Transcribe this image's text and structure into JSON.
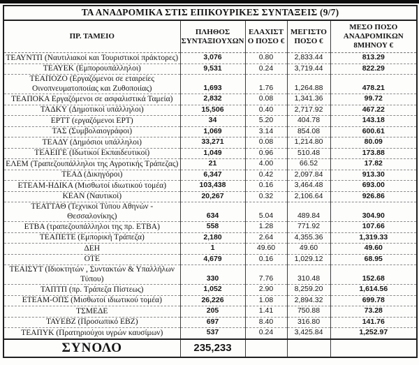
{
  "colors": {
    "top_bar": "#0c0c0c",
    "border": "#1f1f1f",
    "text": "#151515",
    "background": "#fdfdfc"
  },
  "table": {
    "title": "ΤΑ ΑΝΑΔΡΟΜΙΚΑ ΣΤΙΣ ΕΠΙΚΟΥΡΙΚΕΣ ΣΥΝΤΑΞΕΙΣ (9/7)",
    "columns": [
      "ΠΡ. ΤΑΜΕΙΟ",
      "ΠΛΗΘΟΣ ΣΥΝΤΑΞΙΟΥΧΩΝ",
      "ΕΛΑΧΙΣΤΟ ΠΟΣΟ €",
      "ΜΕΓΙΣΤΟ ΠΟΣΟ €",
      "ΜΕΣΟ ΠΟΣΟ ΑΝΑΔΡΟΜΙΚΩΝ 8ΜΗΝΟΥ €"
    ],
    "rows": [
      {
        "fund": "ΤΕΑΥΝΤΠ (Ναυτιλιακοί και Τουριστικοί πράκτορες)",
        "count": "3,076",
        "min": "0.80",
        "max": "2,833.44",
        "avg": "813.29"
      },
      {
        "fund": "ΤΕΑΥΕΚ (Εμπορουπάλληλοι)",
        "count": "9,531",
        "min": "0.24",
        "max": "3,719.44",
        "avg": "822.29"
      },
      {
        "fund": "ΤΕΑΠΟΖΟ (Εργαζόμενοι σε εταιρείες Οινοπνευματοποιίας και Ζυθοποιίας)",
        "count": "1,693",
        "min": "1.76",
        "max": "1,264.88",
        "avg": "478.21"
      },
      {
        "fund": "ΤΕΑΠΟΚΑ Εργαζόμενοι σε ασφαλιστικά Ταμεία)",
        "count": "2,832",
        "min": "0.08",
        "max": "1,341.36",
        "avg": "99.72"
      },
      {
        "fund": "ΤΑΔΚΥ (Δημοτικοί υπάλληλοι)",
        "count": "15,506",
        "min": "0.40",
        "max": "2,717.92",
        "avg": "467.22"
      },
      {
        "fund": "ΕΡΤΤ (εργαζόμενοι ΕΡΤ)",
        "count": "34",
        "min": "5.20",
        "max": "404.78",
        "avg": "143.18"
      },
      {
        "fund": "ΤΑΣ (Συμβολαιογράφοι)",
        "count": "1,069",
        "min": "3.14",
        "max": "854.08",
        "avg": "600.61"
      },
      {
        "fund": "ΤΕΑΔΥ (Δημόσιοι υπάλληλοι)",
        "count": "33,271",
        "min": "0.08",
        "max": "1,214.80",
        "avg": "80.09"
      },
      {
        "fund": "ΤΕΑΕΙΓΕ (Ιδωτικοί Εκπαιδευτικοί)",
        "count": "1,049",
        "min": "0.96",
        "max": "510.48",
        "avg": "173.88"
      },
      {
        "fund": "ΕΛΕΜ (Τραπεζουπάλληλοι της Αγροτικής Τράπεζας)",
        "count": "21",
        "min": "4.00",
        "max": "66.52",
        "avg": "17.82"
      },
      {
        "fund": "ΤΕΑΔ (Δικηγόροι)",
        "count": "6,347",
        "min": "0.42",
        "max": "2,097.84",
        "avg": "913.30"
      },
      {
        "fund": "ΕΤΕΑΜ-ΗΔΙΚΑ (Μισθωτοί ιδιωτικού τομέα)",
        "count": "103,438",
        "min": "0.16",
        "max": "3,464.48",
        "avg": "693.00"
      },
      {
        "fund": "ΚΕΑΝ (Ναυτικοί)",
        "count": "20,267",
        "min": "0.32",
        "max": "2,106.64",
        "avg": "926.86"
      },
      {
        "fund": "ΤΕΑΤΤΑΘ (Τεχνικοί Τύπου Αθηνών - Θεσσαλονίκης)",
        "count": "634",
        "min": "5.04",
        "max": "489.84",
        "avg": "304.90"
      },
      {
        "fund": "ΕΤΒΑ (τραπεζουπάλληλοι της πρ. ΕΤΒΑ)",
        "count": "558",
        "min": "1.28",
        "max": "771.92",
        "avg": "107.66"
      },
      {
        "fund": "ΤΕΑΠΕΤΕ (Εμπορική Τράπεζα)",
        "count": "2,180",
        "min": "2.64",
        "max": "4,355.36",
        "avg": "1,319.33"
      },
      {
        "fund": "ΔΕΗ",
        "count": "1",
        "min": "49.60",
        "max": "49.60",
        "avg": "49.60"
      },
      {
        "fund": "ΟΤΕ",
        "count": "4,679",
        "min": "0.16",
        "max": "1,029.12",
        "avg": "68.95"
      },
      {
        "fund": "ΤΕΑΙΣΥΤ (Ιδιοκτητών , Συντακτών & Υπαλλήλων Τύπου)",
        "count": "330",
        "min": "7.76",
        "max": "310.48",
        "avg": "152.68"
      },
      {
        "fund": "ΤΑΠΤΠ (πρ. Τράπεζα Πίστεως)",
        "count": "1,052",
        "min": "2.90",
        "max": "8,259.20",
        "avg": "1,614.56"
      },
      {
        "fund": "ΕΤΕΑΜ-ΟΠΣ (Μισθωτοί ιδιωτικού τομέα)",
        "count": "26,226",
        "min": "1.08",
        "max": "2,894.32",
        "avg": "699.78"
      },
      {
        "fund": "ΤΣΜΕΔΕ",
        "count": "205",
        "min": "1.41",
        "max": "750.88",
        "avg": "73.28"
      },
      {
        "fund": "ΤΑΥΕΒΖ (Προσωπικό ΕΒΖ)",
        "count": "697",
        "min": "8.40",
        "max": "316.80",
        "avg": "141.76"
      },
      {
        "fund": "ΤΕΑΠΥΚ (Πρατηριούχοι υγρών καυσίμων)",
        "count": "537",
        "min": "0.24",
        "max": "3,425.84",
        "avg": "1,252.97"
      }
    ],
    "total": {
      "label": "ΣΥΝΟΛΟ",
      "count": "235,233"
    }
  },
  "chart_data": {
    "type": "table",
    "title": "ΤΑ ΑΝΑΔΡΟΜΙΚΑ ΣΤΙΣ ΕΠΙΚΟΥΡΙΚΕΣ ΣΥΝΤΑΞΕΙΣ (9/7)",
    "columns": [
      "ΠΡ. ΤΑΜΕΙΟ",
      "ΠΛΗΘΟΣ ΣΥΝΤΑΞΙΟΥΧΩΝ",
      "ΕΛΑΧΙΣΤΟ ΠΟΣΟ €",
      "ΜΕΓΙΣΤΟ ΠΟΣΟ €",
      "ΜΕΣΟ ΠΟΣΟ ΑΝΑΔΡΟΜΙΚΩΝ 8ΜΗΝΟΥ €"
    ],
    "rows": [
      [
        "ΤΕΑΥΝΤΠ (Ναυτιλιακοί και Τουριστικοί πράκτορες)",
        3076,
        0.8,
        2833.44,
        813.29
      ],
      [
        "ΤΕΑΥΕΚ (Εμπορουπάλληλοι)",
        9531,
        0.24,
        3719.44,
        822.29
      ],
      [
        "ΤΕΑΠΟΖΟ (Εργαζόμενοι σε εταιρείες Οινοπνευματοποιίας και Ζυθοποιίας)",
        1693,
        1.76,
        1264.88,
        478.21
      ],
      [
        "ΤΕΑΠΟΚΑ Εργαζόμενοι σε ασφαλιστικά Ταμεία)",
        2832,
        0.08,
        1341.36,
        99.72
      ],
      [
        "ΤΑΔΚΥ (Δημοτικοί υπάλληλοι)",
        15506,
        0.4,
        2717.92,
        467.22
      ],
      [
        "ΕΡΤΤ (εργαζόμενοι ΕΡΤ)",
        34,
        5.2,
        404.78,
        143.18
      ],
      [
        "ΤΑΣ (Συμβολαιογράφοι)",
        1069,
        3.14,
        854.08,
        600.61
      ],
      [
        "ΤΕΑΔΥ (Δημόσιοι υπάλληλοι)",
        33271,
        0.08,
        1214.8,
        80.09
      ],
      [
        "ΤΕΑΕΙΓΕ (Ιδωτικοί Εκπαιδευτικοί)",
        1049,
        0.96,
        510.48,
        173.88
      ],
      [
        "ΕΛΕΜ (Τραπεζουπάλληλοι της Αγροτικής Τράπεζας)",
        21,
        4.0,
        66.52,
        17.82
      ],
      [
        "ΤΕΑΔ (Δικηγόροι)",
        6347,
        0.42,
        2097.84,
        913.3
      ],
      [
        "ΕΤΕΑΜ-ΗΔΙΚΑ (Μισθωτοί ιδιωτικού τομέα)",
        103438,
        0.16,
        3464.48,
        693.0
      ],
      [
        "ΚΕΑΝ (Ναυτικοί)",
        20267,
        0.32,
        2106.64,
        926.86
      ],
      [
        "ΤΕΑΤΤΑΘ (Τεχνικοί Τύπου Αθηνών - Θεσσαλονίκης)",
        634,
        5.04,
        489.84,
        304.9
      ],
      [
        "ΕΤΒΑ (τραπεζουπάλληλοι της πρ. ΕΤΒΑ)",
        558,
        1.28,
        771.92,
        107.66
      ],
      [
        "ΤΕΑΠΕΤΕ (Εμπορική Τράπεζα)",
        2180,
        2.64,
        4355.36,
        1319.33
      ],
      [
        "ΔΕΗ",
        1,
        49.6,
        49.6,
        49.6
      ],
      [
        "ΟΤΕ",
        4679,
        0.16,
        1029.12,
        68.95
      ],
      [
        "ΤΕΑΙΣΥΤ (Ιδιοκτητών , Συντακτών & Υπαλλήλων Τύπου)",
        330,
        7.76,
        310.48,
        152.68
      ],
      [
        "ΤΑΠΤΠ (πρ. Τράπεζα Πίστεως)",
        1052,
        2.9,
        8259.2,
        1614.56
      ],
      [
        "ΕΤΕΑΜ-ΟΠΣ (Μισθωτοί ιδιωτικού τομέα)",
        26226,
        1.08,
        2894.32,
        699.78
      ],
      [
        "ΤΣΜΕΔΕ",
        205,
        1.41,
        750.88,
        73.28
      ],
      [
        "ΤΑΥΕΒΖ (Προσωπικό ΕΒΖ)",
        697,
        8.4,
        316.8,
        141.76
      ],
      [
        "ΤΕΑΠΥΚ (Πρατηριούχοι υγρών καυσίμων)",
        537,
        0.24,
        3425.84,
        1252.97
      ]
    ],
    "total_row": [
      "ΣΥΝΟΛΟ",
      235233,
      null,
      null,
      null
    ]
  }
}
